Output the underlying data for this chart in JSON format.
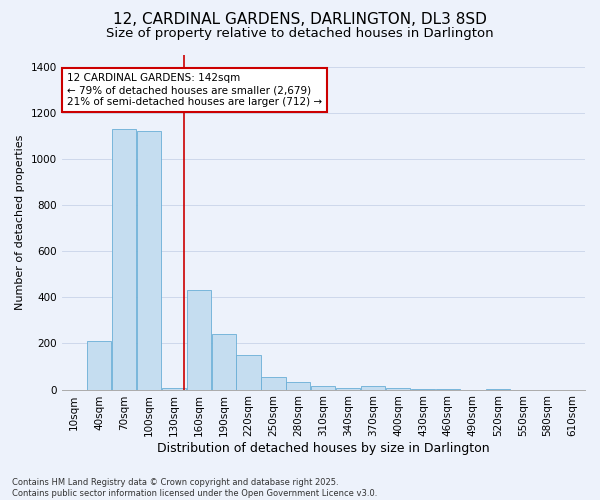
{
  "title": "12, CARDINAL GARDENS, DARLINGTON, DL3 8SD",
  "subtitle": "Size of property relative to detached houses in Darlington",
  "xlabel": "Distribution of detached houses by size in Darlington",
  "ylabel": "Number of detached properties",
  "categories": [
    "10sqm",
    "40sqm",
    "70sqm",
    "100sqm",
    "130sqm",
    "160sqm",
    "190sqm",
    "220sqm",
    "250sqm",
    "280sqm",
    "310sqm",
    "340sqm",
    "370sqm",
    "400sqm",
    "430sqm",
    "460sqm",
    "490sqm",
    "520sqm",
    "550sqm",
    "580sqm",
    "610sqm"
  ],
  "values": [
    0,
    210,
    1130,
    1120,
    5,
    430,
    240,
    150,
    55,
    35,
    15,
    5,
    15,
    5,
    2,
    2,
    0,
    2,
    0,
    0,
    0
  ],
  "bar_color": "#c5ddf0",
  "bar_edgecolor": "#6aaed6",
  "red_line_x": 4.4,
  "red_line_color": "#cc0000",
  "annotation_text": "12 CARDINAL GARDENS: 142sqm\n← 79% of detached houses are smaller (2,679)\n21% of semi-detached houses are larger (712) →",
  "annotation_box_facecolor": "#ffffff",
  "annotation_box_edgecolor": "#cc0000",
  "ylim": [
    0,
    1450
  ],
  "yticks": [
    0,
    200,
    400,
    600,
    800,
    1000,
    1200,
    1400
  ],
  "footnote": "Contains HM Land Registry data © Crown copyright and database right 2025.\nContains public sector information licensed under the Open Government Licence v3.0.",
  "background_color": "#edf2fb",
  "title_fontsize": 11,
  "subtitle_fontsize": 9.5,
  "xlabel_fontsize": 9,
  "ylabel_fontsize": 8,
  "tick_fontsize": 7.5,
  "annot_fontsize": 7.5,
  "footnote_fontsize": 6
}
